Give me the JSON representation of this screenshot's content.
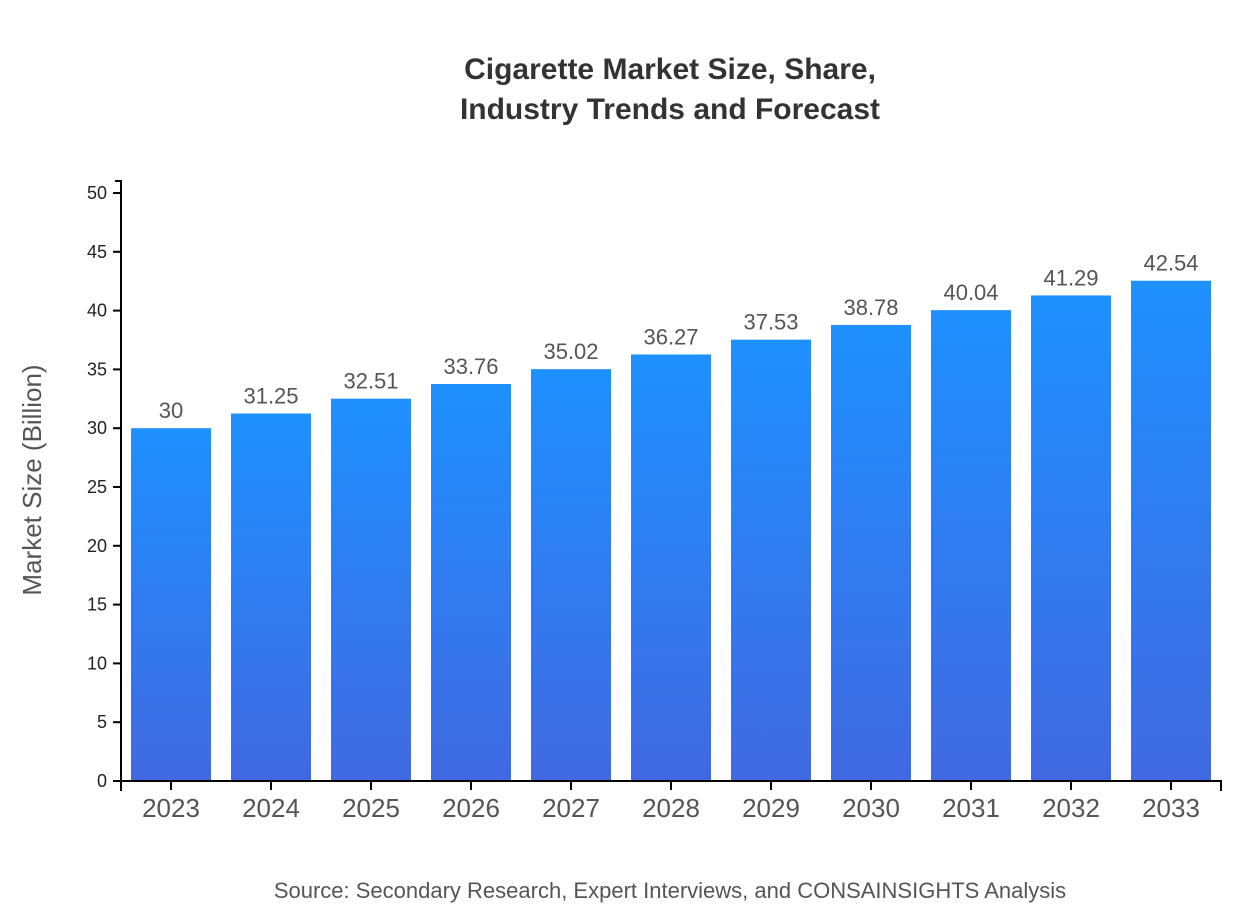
{
  "chart_data": {
    "type": "bar",
    "title_line1": "Cigarette Market Size, Share,",
    "title_line2": "Industry Trends and Forecast",
    "xlabel": "",
    "ylabel": "Market Size (Billion)",
    "categories": [
      "2023",
      "2024",
      "2025",
      "2026",
      "2027",
      "2028",
      "2029",
      "2030",
      "2031",
      "2032",
      "2033"
    ],
    "values": [
      30,
      31.25,
      32.51,
      33.76,
      35.02,
      36.27,
      37.53,
      38.78,
      40.04,
      41.29,
      42.54
    ],
    "data_labels": [
      "30",
      "31.25",
      "32.51",
      "33.76",
      "35.02",
      "36.27",
      "37.53",
      "38.78",
      "40.04",
      "41.29",
      "42.54"
    ],
    "ylim": [
      0,
      50
    ],
    "yticks": [
      0,
      5,
      10,
      15,
      20,
      25,
      30,
      35,
      40,
      45,
      50
    ],
    "grid": false,
    "legend": "none",
    "colors": {
      "bar_top": "#1E90FF",
      "bar_bottom": "#4169E1"
    },
    "source": "Source: Secondary Research, Expert Interviews, and CONSAINSIGHTS Analysis"
  }
}
